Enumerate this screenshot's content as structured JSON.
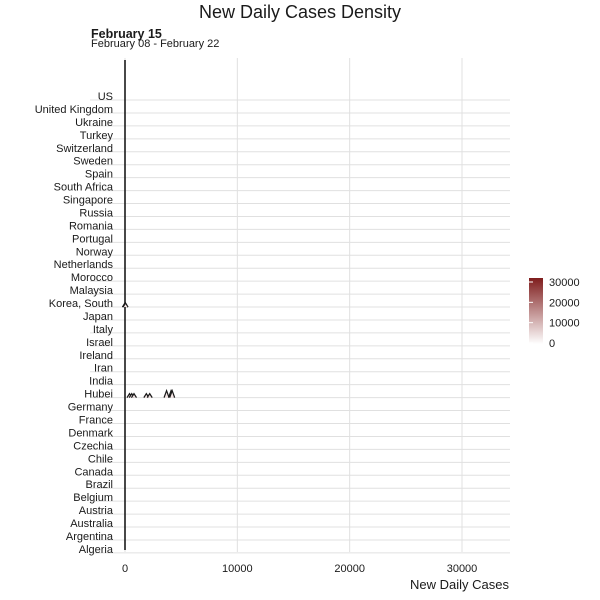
{
  "title": "New Daily Cases Density",
  "subtitle_date": "February 15",
  "subtitle_range": "February 08 - February 22",
  "colors": {
    "fill_high": "#7f1d1d",
    "fill_low": "#ffffff",
    "grid": "#e0e0e0",
    "line": "#1a1a1a"
  },
  "chart_data": {
    "type": "ridgeline-density",
    "title": "New Daily Cases Density",
    "xlabel": "New Daily Cases",
    "ylabel": "",
    "xlim": [
      0,
      34000
    ],
    "x_ticks": [
      0,
      10000,
      20000,
      30000
    ],
    "x_tick_labels": [
      "0",
      "10000",
      "20000",
      "30000"
    ],
    "grid": true,
    "legend": {
      "position": "right",
      "type": "colorbar",
      "ticks": [
        0,
        10000,
        20000,
        30000
      ],
      "tick_labels": [
        "0",
        "10000",
        "20000",
        "30000"
      ]
    },
    "categories": [
      "Algeria",
      "Argentina",
      "Australia",
      "Austria",
      "Belgium",
      "Brazil",
      "Canada",
      "Chile",
      "Czechia",
      "Denmark",
      "France",
      "Germany",
      "Hubei",
      "India",
      "Iran",
      "Ireland",
      "Israel",
      "Italy",
      "Japan",
      "Korea, South",
      "Malaysia",
      "Morocco",
      "Netherlands",
      "Norway",
      "Portugal",
      "Romania",
      "Russia",
      "Singapore",
      "South Africa",
      "Spain",
      "Sweden",
      "Switzerland",
      "Turkey",
      "Ukraine",
      "United Kingdom",
      "US"
    ],
    "series": [
      {
        "category": "Hubei",
        "observed_daily_cases": [
          400,
          600,
          800,
          1900,
          2200,
          3700,
          4100,
          4200
        ]
      },
      {
        "category": "Korea, South",
        "observed_daily_cases": [
          0,
          1,
          2,
          50
        ]
      }
    ],
    "note_other_categories": "All other countries concentrated near 0"
  }
}
